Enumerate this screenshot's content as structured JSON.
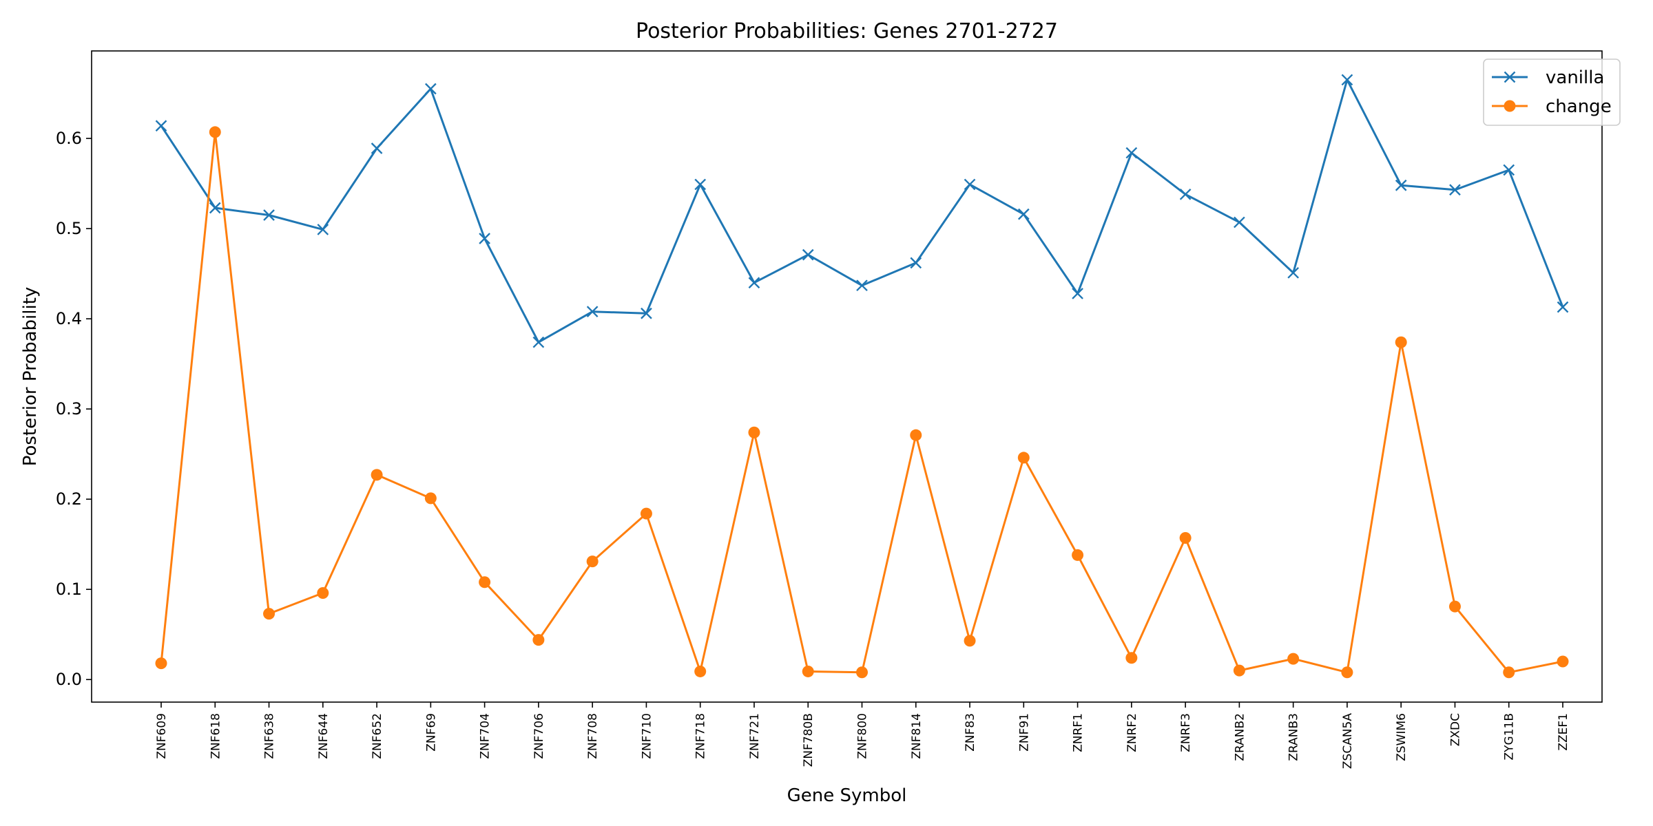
{
  "chart_data": {
    "type": "line",
    "title": "Posterior Probabilities: Genes 2701-2727",
    "xlabel": "Gene Symbol",
    "ylabel": "Posterior Probability",
    "categories": [
      "ZNF609",
      "ZNF618",
      "ZNF638",
      "ZNF644",
      "ZNF652",
      "ZNF69",
      "ZNF704",
      "ZNF706",
      "ZNF708",
      "ZNF710",
      "ZNF718",
      "ZNF721",
      "ZNF780B",
      "ZNF800",
      "ZNF814",
      "ZNF83",
      "ZNF91",
      "ZNRF1",
      "ZNRF2",
      "ZNRF3",
      "ZRANB2",
      "ZRANB3",
      "ZSCAN5A",
      "ZSWIM6",
      "ZXDC",
      "ZYG11B",
      "ZZEF1"
    ],
    "series": [
      {
        "name": "vanilla",
        "marker": "x",
        "color": "#1f77b4",
        "values": [
          0.614,
          0.523,
          0.515,
          0.499,
          0.589,
          0.655,
          0.489,
          0.374,
          0.408,
          0.406,
          0.549,
          0.44,
          0.471,
          0.437,
          0.462,
          0.549,
          0.516,
          0.428,
          0.584,
          0.538,
          0.507,
          0.451,
          0.665,
          0.548,
          0.543,
          0.565,
          0.413
        ]
      },
      {
        "name": "change",
        "marker": "circle",
        "color": "#ff7f0e",
        "values": [
          0.018,
          0.607,
          0.073,
          0.096,
          0.227,
          0.201,
          0.108,
          0.044,
          0.131,
          0.184,
          0.009,
          0.274,
          0.009,
          0.008,
          0.271,
          0.043,
          0.246,
          0.138,
          0.024,
          0.157,
          0.01,
          0.023,
          0.008,
          0.374,
          0.081,
          0.008,
          0.02
        ]
      }
    ],
    "yticks": [
      0.0,
      0.1,
      0.2,
      0.3,
      0.4,
      0.5,
      0.6
    ],
    "ytick_labels": [
      "0.0",
      "0.1",
      "0.2",
      "0.3",
      "0.4",
      "0.5",
      "0.6"
    ],
    "ylim": [
      -0.025,
      0.697
    ],
    "grid": false,
    "legend_position": "top-right"
  }
}
